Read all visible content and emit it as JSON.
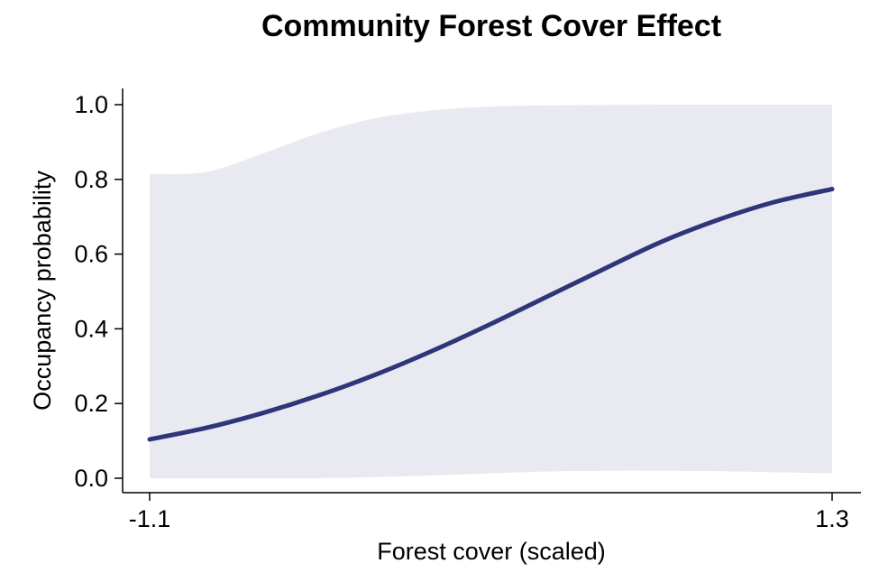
{
  "chart_data": {
    "type": "line",
    "title": "Community Forest Cover Effect",
    "xlabel": "Forest cover (scaled)",
    "ylabel": "Occupancy probability",
    "xlim": [
      -1.1,
      1.3
    ],
    "ylim": [
      0.0,
      1.0
    ],
    "x_ticks": [
      "-1.1",
      "1.3"
    ],
    "y_ticks": [
      "0.0",
      "0.2",
      "0.4",
      "0.6",
      "0.8",
      "1.0"
    ],
    "grid": false,
    "colors": {
      "line": "#2e3579",
      "band": "#e9e9f2"
    },
    "series": [
      {
        "x": [
          -1.1,
          -0.9,
          -0.7,
          -0.5,
          -0.3,
          -0.1,
          0.1,
          0.3,
          0.5,
          0.7,
          0.9,
          1.1,
          1.3
        ],
        "values": [
          0.104,
          0.135,
          0.175,
          0.223,
          0.279,
          0.343,
          0.413,
          0.487,
          0.561,
          0.633,
          0.692,
          0.74,
          0.774
        ],
        "lower": [
          0.0,
          0.0,
          0.0,
          0.0,
          0.003,
          0.008,
          0.013,
          0.018,
          0.02,
          0.02,
          0.019,
          0.016,
          0.013
        ],
        "upper": [
          0.814,
          0.82,
          0.87,
          0.925,
          0.965,
          0.985,
          0.995,
          0.998,
          0.999,
          1.0,
          1.0,
          1.0,
          1.0
        ]
      }
    ]
  }
}
